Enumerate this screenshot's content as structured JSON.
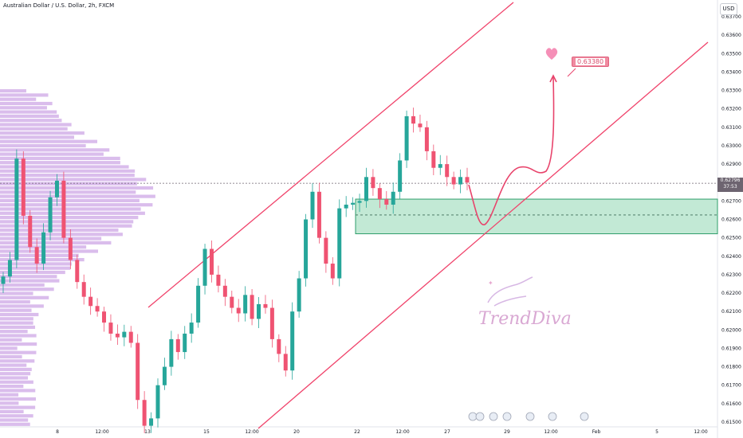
{
  "header": {
    "title": "Australian Dollar / U.S. Dollar, 2h, FXCM",
    "currency": "USD"
  },
  "current_price": {
    "value": "0.62796",
    "countdown": "37:53"
  },
  "callout": {
    "label": "0.63380"
  },
  "watermark": {
    "text": "TrendDiva"
  },
  "colors": {
    "up": "#26a69a",
    "down": "#ef5372",
    "channel": "#f0436b",
    "volume_profile": "#cda7e6",
    "zone": "#4fbf88",
    "projection": "#e8436b"
  },
  "chart_data": {
    "type": "candlestick",
    "title": "Australian Dollar / U.S. Dollar, 2h, FXCM",
    "y_axis": {
      "ticks": [
        "0.63700",
        "0.63600",
        "0.63500",
        "0.63400",
        "0.63300",
        "0.63200",
        "0.63100",
        "0.63000",
        "0.62900",
        "0.62800",
        "0.62700",
        "0.62600",
        "0.62500",
        "0.62400",
        "0.62300",
        "0.62200",
        "0.62100",
        "0.62000",
        "0.61900",
        "0.61800",
        "0.61700",
        "0.61600",
        "0.61500"
      ],
      "range": [
        0.615,
        0.637
      ],
      "position": "right"
    },
    "x_axis": {
      "ticks": [
        "8",
        "12:00",
        "13",
        "15",
        "12:00",
        "20",
        "22",
        "12:00",
        "27",
        "29",
        "12:00",
        "Feb",
        "5",
        "12:00"
      ]
    },
    "close_series": [
      0.6229,
      0.6238,
      0.6293,
      0.6262,
      0.6245,
      0.6236,
      0.6253,
      0.6272,
      0.6281,
      0.625,
      0.6238,
      0.6226,
      0.6218,
      0.6213,
      0.621,
      0.6204,
      0.6198,
      0.6196,
      0.6199,
      0.6193,
      0.6162,
      0.6148,
      0.6152,
      0.617,
      0.618,
      0.6195,
      0.6188,
      0.6198,
      0.6204,
      0.6224,
      0.6244,
      0.623,
      0.6224,
      0.6218,
      0.6212,
      0.6209,
      0.6219,
      0.6206,
      0.6214,
      0.6212,
      0.6195,
      0.6187,
      0.6178,
      0.621,
      0.6228,
      0.626,
      0.6275,
      0.625,
      0.6236,
      0.6228,
      0.6266,
      0.6268,
      0.6269,
      0.627,
      0.6283,
      0.6277,
      0.6271,
      0.6268,
      0.6275,
      0.6292,
      0.6316,
      0.6312,
      0.631,
      0.6297,
      0.6288,
      0.629,
      0.6283,
      0.6279,
      0.6283,
      0.628
    ],
    "reference_lines": [
      {
        "label": "current price",
        "value": 0.62796,
        "style": "dotted"
      },
      {
        "label": "zone midline",
        "value": 0.62624,
        "style": "dashed"
      }
    ],
    "zones": [
      {
        "low": 0.62522,
        "high": 0.6271
      }
    ],
    "annotations": [
      "ascending channel",
      "projection path",
      "heart marker",
      "0.63380"
    ],
    "grid": false
  }
}
